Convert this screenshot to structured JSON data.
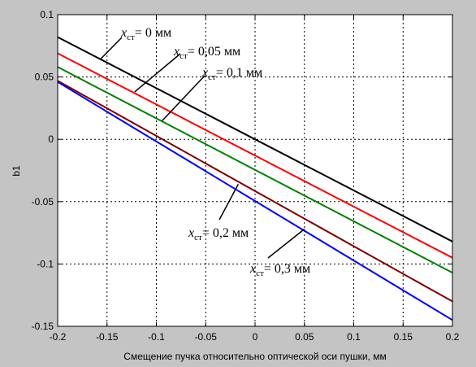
{
  "chart_data": {
    "type": "line",
    "title": "",
    "xlabel": "Смещение пучка относительно оптической оси пушки, мм",
    "ylabel": "b1",
    "xlim": [
      -0.2,
      0.2
    ],
    "ylim": [
      -0.15,
      0.1
    ],
    "xticks": [
      -0.2,
      -0.15,
      -0.1,
      -0.05,
      0,
      0.05,
      0.1,
      0.15,
      0.2
    ],
    "xtick_labels": [
      "-0.2",
      "-0.15",
      "-0.1",
      "-0.05",
      "0",
      "0.05",
      "0.1",
      "0.15",
      "0.2"
    ],
    "yticks": [
      -0.15,
      -0.1,
      -0.05,
      0,
      0.05,
      0.1
    ],
    "ytick_labels": [
      "-0.15",
      "-0.1",
      "-0.05",
      "0",
      "0.05",
      "0.1"
    ],
    "grid": true,
    "series": [
      {
        "name": "x_ст = 0 мм",
        "color": "#000000",
        "x": [
          -0.2,
          0.2
        ],
        "y": [
          0.082,
          -0.082
        ]
      },
      {
        "name": "x_ст = 0,05 мм",
        "color": "#ff0000",
        "x": [
          -0.2,
          0.2
        ],
        "y": [
          0.069,
          -0.095
        ]
      },
      {
        "name": "x_ст = 0,1 мм",
        "color": "#008000",
        "x": [
          -0.2,
          0.2
        ],
        "y": [
          0.058,
          -0.107
        ]
      },
      {
        "name": "x_ст = 0,2 мм",
        "color": "#800000",
        "x": [
          -0.2,
          0.2
        ],
        "y": [
          0.047,
          -0.13
        ]
      },
      {
        "name": "x_ст = 0,3 мм",
        "color": "#0000ff",
        "x": [
          -0.2,
          0.2
        ],
        "y": [
          0.046,
          -0.145
        ]
      }
    ],
    "annotations": [
      {
        "italic": "x",
        "sub": "ст",
        "rest": "= 0 мм",
        "target": [
          -0.157,
          0.064
        ]
      },
      {
        "italic": "x",
        "sub": "ст",
        "rest": "= 0,05 мм",
        "target": [
          -0.122,
          0.038
        ]
      },
      {
        "italic": "x",
        "sub": "ст",
        "rest": "= 0,1 мм",
        "target": [
          -0.094,
          0.015
        ]
      },
      {
        "italic": "x",
        "sub": "ст",
        "rest": "= 0,2 мм",
        "target": [
          -0.017,
          -0.036
        ]
      },
      {
        "italic": "x",
        "sub": "ст",
        "rest": "= 0,3 мм",
        "target": [
          0.05,
          -0.072
        ]
      }
    ]
  }
}
